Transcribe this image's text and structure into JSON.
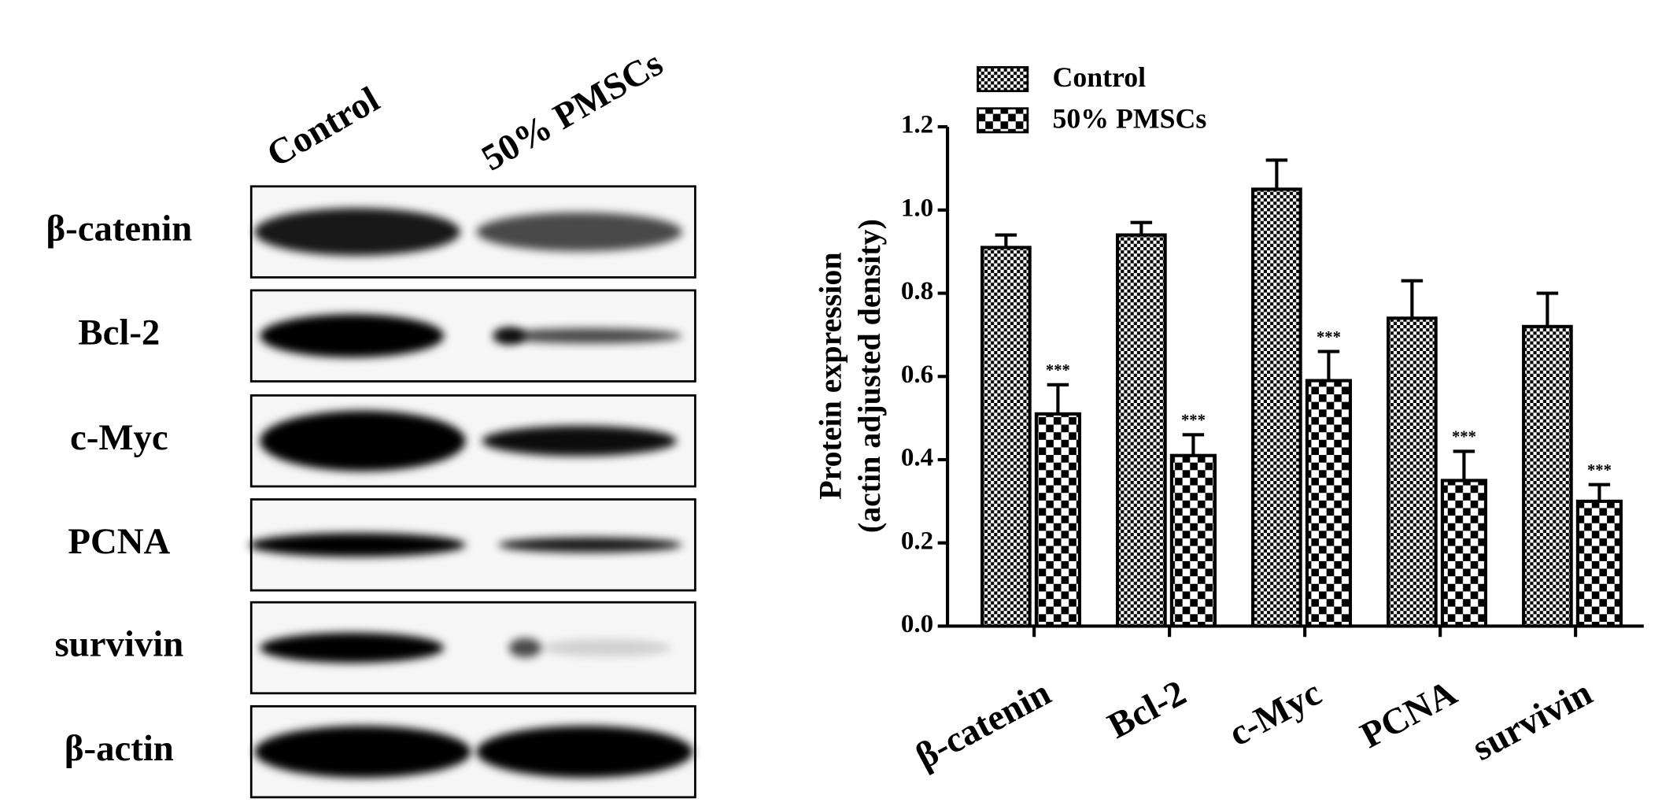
{
  "blot": {
    "lanes": [
      "Control",
      "50% PMSCs"
    ],
    "rows": [
      "β-catenin",
      "Bcl-2",
      "c-Myc",
      "PCNA",
      "survivin",
      "β-actin"
    ]
  },
  "chart_data": {
    "type": "bar",
    "ylabel": [
      "Protein expression",
      "(actin adjusted density)"
    ],
    "categories": [
      "β-catenin",
      "Bcl-2",
      "c-Myc",
      "PCNA",
      "survivin"
    ],
    "series": [
      {
        "name": "Control",
        "color": "#000000",
        "pattern": "fine",
        "values": [
          0.91,
          0.94,
          1.05,
          0.74,
          0.72
        ],
        "errors": [
          0.03,
          0.03,
          0.07,
          0.09,
          0.08
        ]
      },
      {
        "name": "50% PMSCs",
        "color": "#000000",
        "pattern": "coarse",
        "values": [
          0.51,
          0.41,
          0.59,
          0.35,
          0.3
        ],
        "errors": [
          0.07,
          0.05,
          0.07,
          0.07,
          0.04
        ],
        "annotations": [
          "***",
          "***",
          "***",
          "***",
          "***"
        ]
      }
    ],
    "ylim": [
      0,
      1.2
    ],
    "yticks": [
      {
        "value": 0,
        "label": "0.0"
      },
      0.2,
      0.4,
      0.6,
      0.8,
      {
        "value": 1,
        "label": "1.0"
      },
      1.2
    ],
    "legend": "top-left"
  }
}
